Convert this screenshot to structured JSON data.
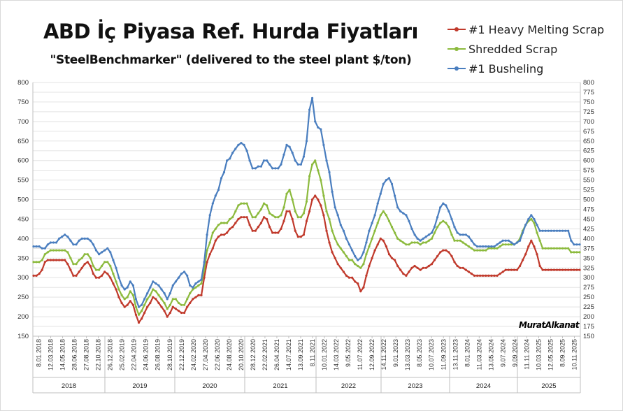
{
  "chart_data": {
    "type": "line",
    "title": "ABD İç Piyasa Ref. Hurda Fiyatları",
    "subtitle": "\"SteelBenchmarker\" (delivered to the steel plant $/ton)",
    "signature": "MuratAlkanat",
    "ylim": [
      150,
      800
    ],
    "yticks": [
      "150",
      "175",
      "200",
      "225",
      "250",
      "275",
      "300",
      "325",
      "350",
      "375",
      "400",
      "425",
      "450",
      "475",
      "500",
      "525",
      "550",
      "575",
      "600",
      "625",
      "650",
      "675",
      "700",
      "725",
      "750",
      "775",
      "800"
    ],
    "yticks_left": [
      "150",
      "200",
      "250",
      "300",
      "350",
      "400",
      "450",
      "500",
      "550",
      "600",
      "650",
      "700",
      "750",
      "800"
    ],
    "x_date_labels": [
      "8.01.2018",
      "12.03.2018",
      "14.05.2018",
      "28.06.2018",
      "27.08.2018",
      "22.10.2018",
      "26.12.2018",
      "25.02.2019",
      "22.04.2019",
      "24.06.2019",
      "26.08.2019",
      "28.10.2019",
      "22.12.2019",
      "24.02.2020",
      "27.04.2020",
      "22.06.2020",
      "24.08.2020",
      "20.10.2020",
      "28.12.2020",
      "22.02.2021",
      "26.04.2021",
      "14.07.2021",
      "13.09.2021",
      "8.11.2021",
      "10.01.2022",
      "14.03.2022",
      "9.05.2022",
      "11.07.2022",
      "12.09.2022",
      "14.11.2022",
      "9.01.2023",
      "13.03.2023",
      "8.05.2023",
      "10.07.2023",
      "11.09.2023",
      "13.11.2023",
      "8.01.2024",
      "11.03.2024",
      "13.05.2024",
      "9.07.2024",
      "9.09.2024",
      "11.11.2024",
      "10.03.2025",
      "12.05.2025",
      "8.09.2025",
      "10.11.2025"
    ],
    "years": [
      "2018",
      "2019",
      "2020",
      "2021",
      "2022",
      "2023",
      "2024",
      "2025"
    ],
    "grid": true,
    "legend_position": "top-right",
    "series": [
      {
        "name": "#1 Heavy Melting Scrap",
        "color": "#c0392b",
        "values": [
          305,
          305,
          310,
          320,
          340,
          345,
          345,
          345,
          345,
          345,
          345,
          345,
          335,
          320,
          305,
          305,
          315,
          325,
          335,
          340,
          330,
          310,
          300,
          300,
          305,
          315,
          310,
          300,
          285,
          270,
          250,
          235,
          225,
          230,
          240,
          230,
          205,
          185,
          195,
          210,
          225,
          235,
          250,
          245,
          235,
          225,
          215,
          200,
          210,
          225,
          220,
          215,
          210,
          210,
          225,
          235,
          245,
          250,
          255,
          255,
          300,
          340,
          360,
          375,
          395,
          405,
          410,
          410,
          415,
          425,
          430,
          440,
          450,
          455,
          455,
          455,
          435,
          420,
          420,
          430,
          440,
          455,
          450,
          430,
          415,
          415,
          415,
          425,
          445,
          470,
          470,
          450,
          420,
          405,
          405,
          410,
          445,
          470,
          500,
          510,
          500,
          485,
          460,
          420,
          390,
          365,
          350,
          335,
          325,
          315,
          305,
          300,
          300,
          290,
          285,
          265,
          275,
          305,
          330,
          350,
          370,
          385,
          400,
          395,
          380,
          360,
          350,
          345,
          330,
          320,
          310,
          305,
          315,
          325,
          330,
          325,
          320,
          325,
          325,
          330,
          335,
          345,
          355,
          365,
          370,
          370,
          365,
          355,
          340,
          330,
          325,
          325,
          320,
          315,
          310,
          305,
          305,
          305,
          305,
          305,
          305,
          305,
          305,
          305,
          310,
          315,
          320,
          320,
          320,
          320,
          320,
          330,
          345,
          360,
          380,
          395,
          380,
          360,
          330,
          320,
          320,
          320,
          320,
          320,
          320,
          320,
          320,
          320,
          320,
          320,
          320,
          320,
          320
        ]
      },
      {
        "name": "Shredded Scrap",
        "color": "#8cba3d",
        "values": [
          340,
          340,
          340,
          345,
          360,
          365,
          370,
          370,
          370,
          370,
          370,
          370,
          365,
          350,
          335,
          335,
          345,
          350,
          360,
          360,
          350,
          330,
          320,
          320,
          330,
          340,
          340,
          330,
          310,
          290,
          270,
          255,
          245,
          250,
          265,
          255,
          225,
          205,
          215,
          230,
          245,
          255,
          270,
          265,
          255,
          245,
          235,
          220,
          230,
          245,
          245,
          235,
          230,
          230,
          245,
          260,
          270,
          275,
          280,
          285,
          320,
          370,
          390,
          415,
          425,
          435,
          440,
          440,
          440,
          450,
          455,
          470,
          485,
          490,
          490,
          490,
          470,
          455,
          455,
          465,
          475,
          490,
          485,
          465,
          460,
          455,
          455,
          460,
          480,
          515,
          525,
          500,
          470,
          455,
          455,
          465,
          495,
          560,
          590,
          600,
          575,
          550,
          510,
          470,
          450,
          420,
          400,
          385,
          375,
          365,
          355,
          345,
          345,
          335,
          330,
          325,
          335,
          360,
          380,
          400,
          420,
          440,
          460,
          470,
          460,
          445,
          430,
          415,
          400,
          395,
          390,
          385,
          385,
          390,
          390,
          390,
          385,
          390,
          390,
          395,
          400,
          415,
          430,
          440,
          445,
          440,
          430,
          410,
          395,
          395,
          395,
          390,
          385,
          380,
          375,
          370,
          370,
          370,
          370,
          370,
          375,
          375,
          375,
          375,
          380,
          385,
          385,
          385,
          385,
          385,
          390,
          400,
          420,
          435,
          445,
          450,
          440,
          415,
          395,
          375,
          375,
          375,
          375,
          375,
          375,
          375,
          375,
          375,
          375,
          365,
          365,
          365,
          365
        ]
      },
      {
        "name": "#1 Busheling",
        "color": "#4a7ebf",
        "values": [
          380,
          380,
          380,
          375,
          375,
          385,
          390,
          390,
          390,
          400,
          405,
          410,
          405,
          395,
          385,
          385,
          395,
          400,
          400,
          400,
          395,
          385,
          370,
          360,
          365,
          370,
          375,
          365,
          345,
          325,
          300,
          280,
          270,
          275,
          290,
          280,
          245,
          225,
          230,
          245,
          260,
          275,
          290,
          285,
          280,
          270,
          260,
          245,
          260,
          280,
          290,
          300,
          310,
          315,
          305,
          280,
          275,
          285,
          290,
          295,
          340,
          410,
          460,
          490,
          510,
          525,
          555,
          570,
          600,
          605,
          620,
          630,
          640,
          645,
          640,
          625,
          600,
          580,
          580,
          585,
          585,
          600,
          600,
          590,
          580,
          580,
          580,
          590,
          615,
          640,
          635,
          620,
          600,
          590,
          590,
          610,
          650,
          730,
          760,
          700,
          685,
          680,
          640,
          600,
          570,
          520,
          480,
          460,
          435,
          420,
          400,
          385,
          370,
          355,
          345,
          350,
          365,
          390,
          420,
          440,
          460,
          490,
          515,
          540,
          550,
          555,
          540,
          510,
          480,
          470,
          465,
          460,
          445,
          425,
          410,
          400,
          395,
          400,
          405,
          410,
          415,
          430,
          455,
          480,
          490,
          485,
          470,
          450,
          430,
          415,
          410,
          410,
          410,
          405,
          395,
          385,
          380,
          380,
          380,
          380,
          380,
          380,
          380,
          385,
          390,
          395,
          395,
          395,
          390,
          385,
          390,
          395,
          415,
          435,
          450,
          460,
          450,
          435,
          420,
          420,
          420,
          420,
          420,
          420,
          420,
          420,
          420,
          420,
          420,
          395,
          385,
          385,
          385
        ]
      }
    ]
  }
}
